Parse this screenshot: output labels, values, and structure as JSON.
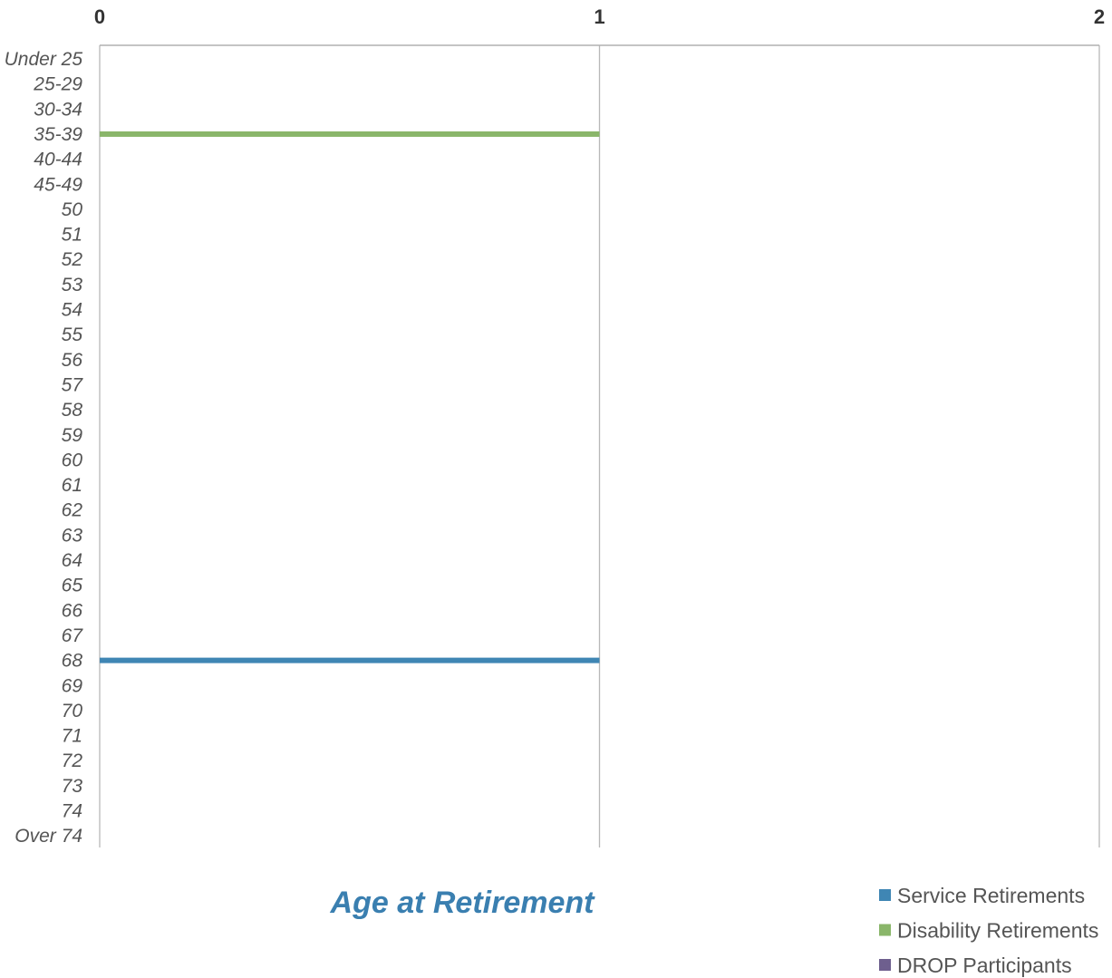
{
  "chart_data": {
    "type": "bar",
    "orientation": "horizontal",
    "stacked": true,
    "title": "Age at Retirement",
    "xlim": [
      0,
      2
    ],
    "x_ticks": [
      "0",
      "1",
      "2"
    ],
    "categories": [
      "Under 25",
      "25-29",
      "30-34",
      "35-39",
      "40-44",
      "45-49",
      "50",
      "51",
      "52",
      "53",
      "54",
      "55",
      "56",
      "57",
      "58",
      "59",
      "60",
      "61",
      "62",
      "63",
      "64",
      "65",
      "66",
      "67",
      "68",
      "69",
      "70",
      "71",
      "72",
      "73",
      "74",
      "Over 74"
    ],
    "series": [
      {
        "name": "Service Retirements",
        "color": "#3f86b4",
        "values": [
          0,
          0,
          0,
          0,
          0,
          0,
          0,
          0,
          0,
          0,
          0,
          0,
          0,
          0,
          0,
          0,
          0,
          0,
          0,
          0,
          0,
          0,
          0,
          0,
          1,
          0,
          0,
          0,
          0,
          0,
          0,
          0
        ]
      },
      {
        "name": "Disability Retirements",
        "color": "#8ab66a",
        "values": [
          0,
          0,
          0,
          1,
          0,
          0,
          0,
          0,
          0,
          0,
          0,
          0,
          0,
          0,
          0,
          0,
          0,
          0,
          0,
          0,
          0,
          0,
          0,
          0,
          0,
          0,
          0,
          0,
          0,
          0,
          0,
          0
        ]
      },
      {
        "name": "DROP Participants",
        "color": "#6e5f8e",
        "values": [
          0,
          0,
          0,
          0,
          0,
          0,
          0,
          0,
          0,
          0,
          0,
          0,
          0,
          0,
          0,
          0,
          0,
          0,
          0,
          0,
          0,
          0,
          0,
          0,
          0,
          0,
          0,
          0,
          0,
          0,
          0,
          0
        ]
      }
    ],
    "grid": true,
    "legend_position": "bottom-right"
  }
}
